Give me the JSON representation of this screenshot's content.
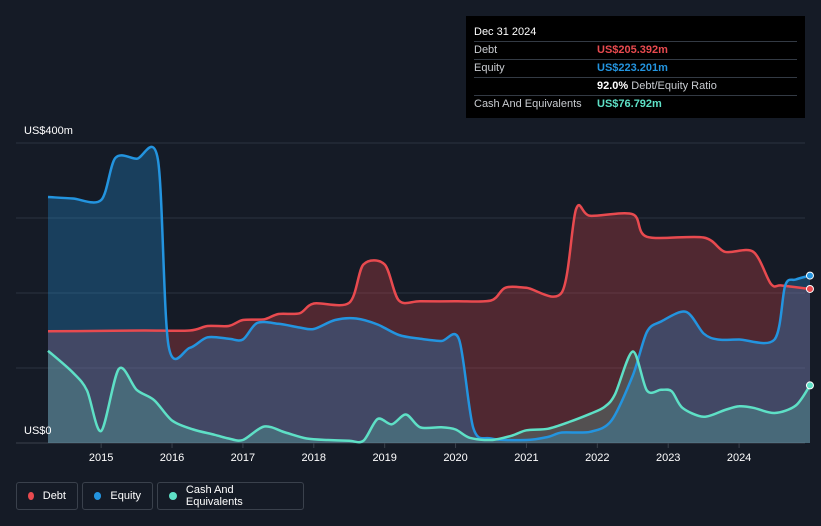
{
  "tooltip": {
    "date": "Dec 31 2024",
    "rows": [
      {
        "label": "Debt",
        "value": "US$205.392m",
        "color": "#e84a4f"
      },
      {
        "label": "Equity",
        "value": "US$223.201m",
        "color": "#2394df"
      },
      {
        "label": "",
        "value": "92.0%",
        "suffix": "Debt/Equity Ratio",
        "color": "#ffffff"
      },
      {
        "label": "Cash And Equivalents",
        "value": "US$76.792m",
        "color": "#5ee0c6"
      }
    ]
  },
  "chart_data": {
    "type": "area",
    "x_unit": "year",
    "ylim": [
      0,
      400
    ],
    "y_ticks": [
      {
        "value": 400,
        "label": "US$400m"
      },
      {
        "value": 0,
        "label": "US$0"
      }
    ],
    "x_ticks": [
      "2015",
      "2016",
      "2017",
      "2018",
      "2019",
      "2020",
      "2021",
      "2022",
      "2023",
      "2024"
    ],
    "series": [
      {
        "name": "Debt",
        "color": "#e84a4f",
        "points": [
          [
            2014.25,
            149
          ],
          [
            2015.0,
            149.5
          ],
          [
            2015.6,
            150
          ],
          [
            2016.25,
            150
          ],
          [
            2016.5,
            156
          ],
          [
            2016.8,
            156
          ],
          [
            2017.0,
            164
          ],
          [
            2017.3,
            165
          ],
          [
            2017.5,
            172
          ],
          [
            2017.8,
            173
          ],
          [
            2018.0,
            186
          ],
          [
            2018.5,
            187
          ],
          [
            2018.7,
            238
          ],
          [
            2019.0,
            238
          ],
          [
            2019.2,
            190
          ],
          [
            2019.5,
            189
          ],
          [
            2020.0,
            189
          ],
          [
            2020.5,
            190
          ],
          [
            2020.7,
            207
          ],
          [
            2021.0,
            207
          ],
          [
            2021.5,
            201
          ],
          [
            2021.7,
            312
          ],
          [
            2021.9,
            303
          ],
          [
            2022.5,
            305
          ],
          [
            2022.7,
            275
          ],
          [
            2023.5,
            274
          ],
          [
            2023.8,
            255
          ],
          [
            2024.2,
            255
          ],
          [
            2024.45,
            212
          ],
          [
            2024.6,
            210
          ],
          [
            2025.0,
            205.392
          ]
        ]
      },
      {
        "name": "Equity",
        "color": "#2394df",
        "points": [
          [
            2014.25,
            328
          ],
          [
            2014.6,
            326
          ],
          [
            2015.0,
            324
          ],
          [
            2015.2,
            380
          ],
          [
            2015.5,
            379
          ],
          [
            2015.8,
            378
          ],
          [
            2015.95,
            130
          ],
          [
            2016.25,
            127
          ],
          [
            2016.5,
            141
          ],
          [
            2016.8,
            139
          ],
          [
            2017.0,
            138
          ],
          [
            2017.2,
            160
          ],
          [
            2017.5,
            159
          ],
          [
            2017.8,
            154
          ],
          [
            2018.0,
            152
          ],
          [
            2018.3,
            164
          ],
          [
            2018.6,
            166
          ],
          [
            2018.9,
            158
          ],
          [
            2019.2,
            144
          ],
          [
            2019.5,
            139
          ],
          [
            2019.8,
            136
          ],
          [
            2020.05,
            138
          ],
          [
            2020.25,
            20
          ],
          [
            2020.5,
            6
          ],
          [
            2021.0,
            4
          ],
          [
            2021.3,
            8
          ],
          [
            2021.5,
            14
          ],
          [
            2021.9,
            15
          ],
          [
            2022.2,
            30
          ],
          [
            2022.5,
            90
          ],
          [
            2022.7,
            148
          ],
          [
            2022.9,
            162
          ],
          [
            2023.25,
            175
          ],
          [
            2023.5,
            146
          ],
          [
            2023.7,
            138
          ],
          [
            2024.0,
            138
          ],
          [
            2024.5,
            138
          ],
          [
            2024.65,
            210
          ],
          [
            2024.8,
            218
          ],
          [
            2025.0,
            223.201
          ]
        ]
      },
      {
        "name": "Cash And Equivalents",
        "color": "#5ee0c6",
        "points": [
          [
            2014.25,
            123
          ],
          [
            2014.6,
            94
          ],
          [
            2014.8,
            70
          ],
          [
            2015.0,
            16
          ],
          [
            2015.25,
            99
          ],
          [
            2015.5,
            71
          ],
          [
            2015.75,
            57
          ],
          [
            2016.0,
            30
          ],
          [
            2016.3,
            18
          ],
          [
            2016.6,
            11
          ],
          [
            2016.8,
            6
          ],
          [
            2017.0,
            4
          ],
          [
            2017.3,
            22
          ],
          [
            2017.6,
            14
          ],
          [
            2017.9,
            6
          ],
          [
            2018.2,
            4
          ],
          [
            2018.5,
            3
          ],
          [
            2018.7,
            3
          ],
          [
            2018.9,
            32
          ],
          [
            2019.1,
            25
          ],
          [
            2019.3,
            38
          ],
          [
            2019.5,
            21
          ],
          [
            2019.8,
            21
          ],
          [
            2020.0,
            18
          ],
          [
            2020.2,
            7
          ],
          [
            2020.5,
            4
          ],
          [
            2020.8,
            10
          ],
          [
            2021.0,
            17
          ],
          [
            2021.3,
            19
          ],
          [
            2021.6,
            28
          ],
          [
            2021.9,
            39
          ],
          [
            2022.1,
            48
          ],
          [
            2022.25,
            65
          ],
          [
            2022.5,
            122
          ],
          [
            2022.7,
            70
          ],
          [
            2022.9,
            71
          ],
          [
            2023.05,
            69
          ],
          [
            2023.2,
            47
          ],
          [
            2023.5,
            35
          ],
          [
            2023.8,
            44
          ],
          [
            2024.0,
            49
          ],
          [
            2024.2,
            47
          ],
          [
            2024.5,
            40
          ],
          [
            2024.8,
            50
          ],
          [
            2025.0,
            76.792
          ]
        ]
      }
    ]
  },
  "legend": {
    "items": [
      {
        "label": "Debt",
        "color": "#e84a4f"
      },
      {
        "label": "Equity",
        "color": "#2394df"
      },
      {
        "label": "Cash And Equivalents",
        "color": "#5ee0c6"
      }
    ]
  }
}
